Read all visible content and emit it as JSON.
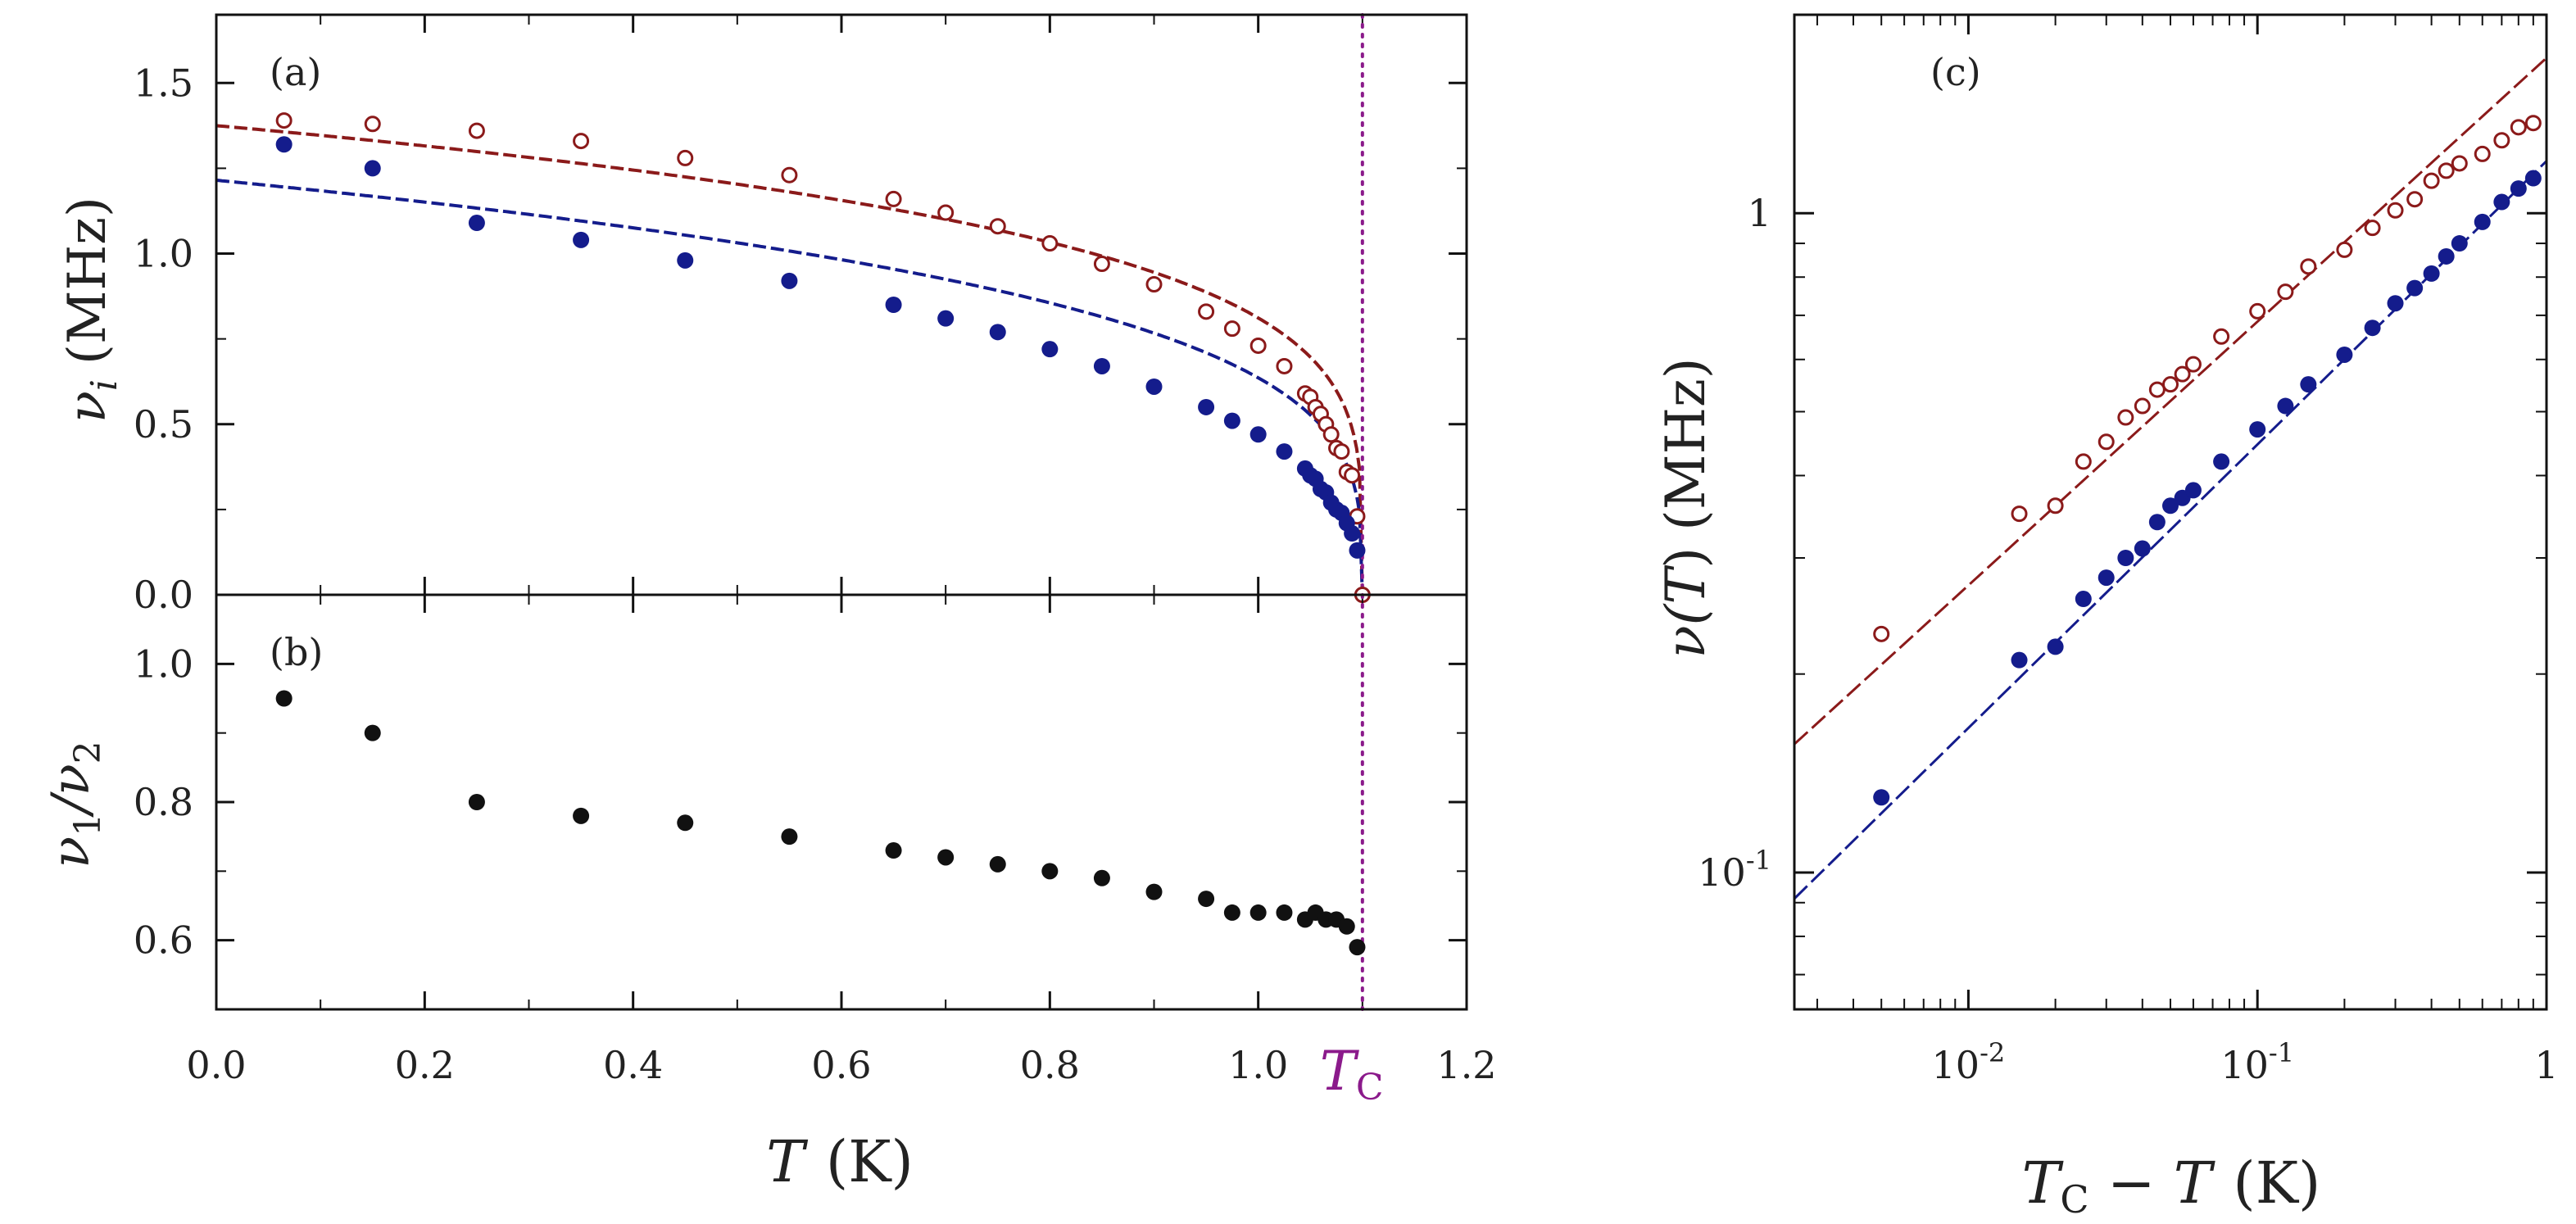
{
  "colors": {
    "red": "#8b1a1a",
    "blue": "#141c8c",
    "black": "#111111",
    "tc_line": "#8b1a8b"
  },
  "chart_data": [
    {
      "panel": "(a)",
      "type": "scatter",
      "xlim": [
        0.0,
        1.2
      ],
      "ylim": [
        0.0,
        1.7
      ],
      "xticks": [
        "0.0",
        "0.2",
        "0.4",
        "0.6",
        "0.8",
        "1.0",
        "1.2"
      ],
      "yticks": [
        "0.0",
        "0.5",
        "1.0",
        "1.5"
      ],
      "ylabel_sym": "ν",
      "ylabel_sub": "i",
      "ylabel_unit": "(MHz)",
      "tc_marker": {
        "x": 1.1,
        "label": "T",
        "sub": "C"
      },
      "series": [
        {
          "name": "nu2",
          "style": "open-circle",
          "color": "#8b1a1a",
          "x": [
            0.065,
            0.15,
            0.25,
            0.35,
            0.45,
            0.55,
            0.65,
            0.7,
            0.75,
            0.8,
            0.85,
            0.9,
            0.95,
            0.975,
            1.0,
            1.025,
            1.045,
            1.05,
            1.055,
            1.06,
            1.065,
            1.07,
            1.075,
            1.08,
            1.085,
            1.09,
            1.095,
            1.1
          ],
          "y": [
            1.39,
            1.38,
            1.36,
            1.33,
            1.28,
            1.23,
            1.16,
            1.12,
            1.08,
            1.03,
            0.97,
            0.91,
            0.83,
            0.78,
            0.73,
            0.67,
            0.59,
            0.58,
            0.55,
            0.53,
            0.5,
            0.47,
            0.43,
            0.42,
            0.36,
            0.35,
            0.23,
            0.0
          ]
        },
        {
          "name": "nu1",
          "style": "filled-circle",
          "color": "#141c8c",
          "x": [
            0.065,
            0.15,
            0.25,
            0.35,
            0.45,
            0.55,
            0.65,
            0.7,
            0.75,
            0.8,
            0.85,
            0.9,
            0.95,
            0.975,
            1.0,
            1.025,
            1.045,
            1.05,
            1.055,
            1.06,
            1.065,
            1.07,
            1.075,
            1.08,
            1.085,
            1.09,
            1.095
          ],
          "y": [
            1.32,
            1.25,
            1.09,
            1.04,
            0.98,
            0.92,
            0.85,
            0.81,
            0.77,
            0.72,
            0.67,
            0.61,
            0.55,
            0.51,
            0.47,
            0.42,
            0.37,
            0.35,
            0.34,
            0.31,
            0.3,
            0.27,
            0.25,
            0.24,
            0.21,
            0.18,
            0.13
          ]
        }
      ],
      "fits": [
        {
          "name": "fit-nu2",
          "color": "#8b1a1a",
          "A": 1.375,
          "beta": 0.22,
          "Tc": 1.1
        },
        {
          "name": "fit-nu1",
          "color": "#141c8c",
          "A": 1.215,
          "beta": 0.27,
          "Tc": 1.1
        }
      ]
    },
    {
      "panel": "(b)",
      "type": "scatter",
      "xlim": [
        0.0,
        1.2
      ],
      "ylim": [
        0.5,
        1.1
      ],
      "yticks": [
        "0.6",
        "0.8",
        "1.0"
      ],
      "ylabel_a": "ν",
      "ylabel_a_sub": "1",
      "ylabel_b": "/ν",
      "ylabel_b_sub": "2",
      "xlabel_sym": "T",
      "xlabel_unit": "(K)",
      "series": [
        {
          "name": "ratio",
          "style": "filled-circle",
          "color": "#111111",
          "x": [
            0.065,
            0.15,
            0.25,
            0.35,
            0.45,
            0.55,
            0.65,
            0.7,
            0.75,
            0.8,
            0.85,
            0.9,
            0.95,
            0.975,
            1.0,
            1.025,
            1.045,
            1.055,
            1.065,
            1.075,
            1.085,
            1.095
          ],
          "y": [
            0.95,
            0.9,
            0.8,
            0.78,
            0.77,
            0.75,
            0.73,
            0.72,
            0.71,
            0.7,
            0.69,
            0.67,
            0.66,
            0.64,
            0.64,
            0.64,
            0.63,
            0.64,
            0.63,
            0.63,
            0.62,
            0.59
          ]
        }
      ]
    },
    {
      "panel": "(c)",
      "type": "scatter",
      "scale": "log-log",
      "xlim": [
        0.0025,
        1.0
      ],
      "ylim": [
        0.062,
        2.0
      ],
      "xticks": [
        {
          "v": 0.01,
          "base": "10",
          "exp": "-2"
        },
        {
          "v": 0.1,
          "base": "10",
          "exp": "-1"
        },
        {
          "v": 1,
          "base": "1",
          "exp": ""
        }
      ],
      "yticks": [
        {
          "v": 0.1,
          "base": "10",
          "exp": "-1"
        },
        {
          "v": 1,
          "base": "1",
          "exp": ""
        }
      ],
      "ylabel_sym": "ν(",
      "ylabel_T": "T",
      "ylabel_close": ")",
      "ylabel_unit": "(MHz)",
      "xlabel_a": "T",
      "xlabel_a_sub": "C",
      "xlabel_mid": " − ",
      "xlabel_b": "T",
      "xlabel_unit": "(K)",
      "series": [
        {
          "name": "nu2-log",
          "style": "open-circle",
          "color": "#8b1a1a",
          "x": [
            0.005,
            0.015,
            0.02,
            0.025,
            0.03,
            0.035,
            0.04,
            0.045,
            0.05,
            0.055,
            0.06,
            0.075,
            0.1,
            0.125,
            0.15,
            0.2,
            0.25,
            0.3,
            0.35,
            0.4,
            0.45,
            0.5,
            0.6,
            0.7,
            0.8,
            0.9
          ],
          "y": [
            0.23,
            0.35,
            0.36,
            0.42,
            0.45,
            0.49,
            0.51,
            0.54,
            0.55,
            0.57,
            0.59,
            0.65,
            0.71,
            0.76,
            0.83,
            0.88,
            0.95,
            1.01,
            1.05,
            1.12,
            1.16,
            1.19,
            1.23,
            1.29,
            1.35,
            1.37
          ]
        },
        {
          "name": "nu1-log",
          "style": "filled-circle",
          "color": "#141c8c",
          "x": [
            0.005,
            0.015,
            0.02,
            0.025,
            0.03,
            0.035,
            0.04,
            0.045,
            0.05,
            0.055,
            0.06,
            0.075,
            0.1,
            0.125,
            0.15,
            0.2,
            0.25,
            0.3,
            0.35,
            0.4,
            0.45,
            0.5,
            0.6,
            0.7,
            0.8,
            0.9
          ],
          "y": [
            0.13,
            0.21,
            0.22,
            0.26,
            0.28,
            0.3,
            0.31,
            0.34,
            0.36,
            0.37,
            0.38,
            0.42,
            0.47,
            0.51,
            0.55,
            0.61,
            0.67,
            0.73,
            0.77,
            0.81,
            0.86,
            0.9,
            0.97,
            1.04,
            1.09,
            1.13
          ]
        }
      ],
      "fits": [
        {
          "name": "fit-nu2-log",
          "color": "#8b1a1a",
          "A": 1.72,
          "beta": 0.4
        },
        {
          "name": "fit-nu1-log",
          "color": "#141c8c",
          "A": 1.2,
          "beta": 0.43
        }
      ]
    }
  ]
}
